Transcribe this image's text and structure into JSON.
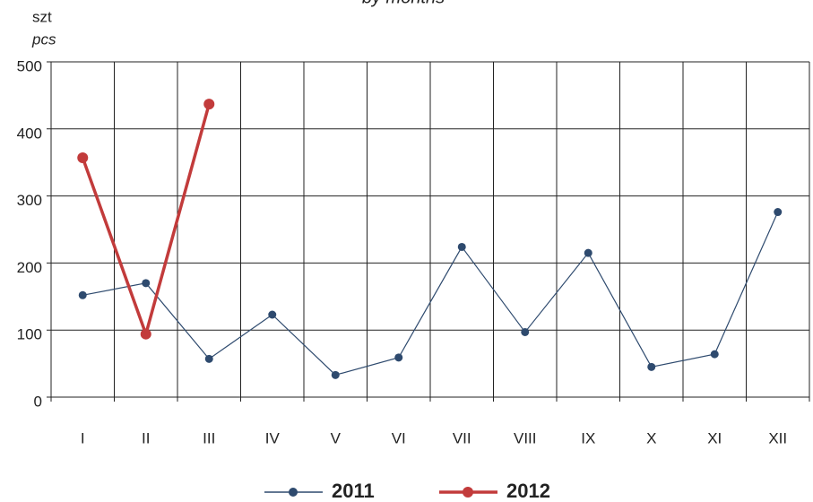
{
  "chart_data": {
    "type": "line",
    "subtitle": "by months",
    "y_label": "szt",
    "y_label_en": "pcs",
    "categories": [
      "I",
      "II",
      "III",
      "IV",
      "V",
      "VI",
      "VII",
      "VIII",
      "IX",
      "X",
      "XI",
      "XII"
    ],
    "series": [
      {
        "name": "2011",
        "color": "#2e4a6e",
        "values": [
          152,
          170,
          57,
          123,
          33,
          59,
          224,
          97,
          215,
          45,
          64,
          276
        ]
      },
      {
        "name": "2012",
        "color": "#c23b3b",
        "values": [
          357,
          94,
          437,
          null,
          null,
          null,
          null,
          null,
          null,
          null,
          null,
          null
        ]
      }
    ],
    "ylim": [
      0,
      500
    ],
    "yticks": [
      0,
      100,
      200,
      300,
      400,
      500
    ],
    "grid": true,
    "legend": "bottom"
  }
}
